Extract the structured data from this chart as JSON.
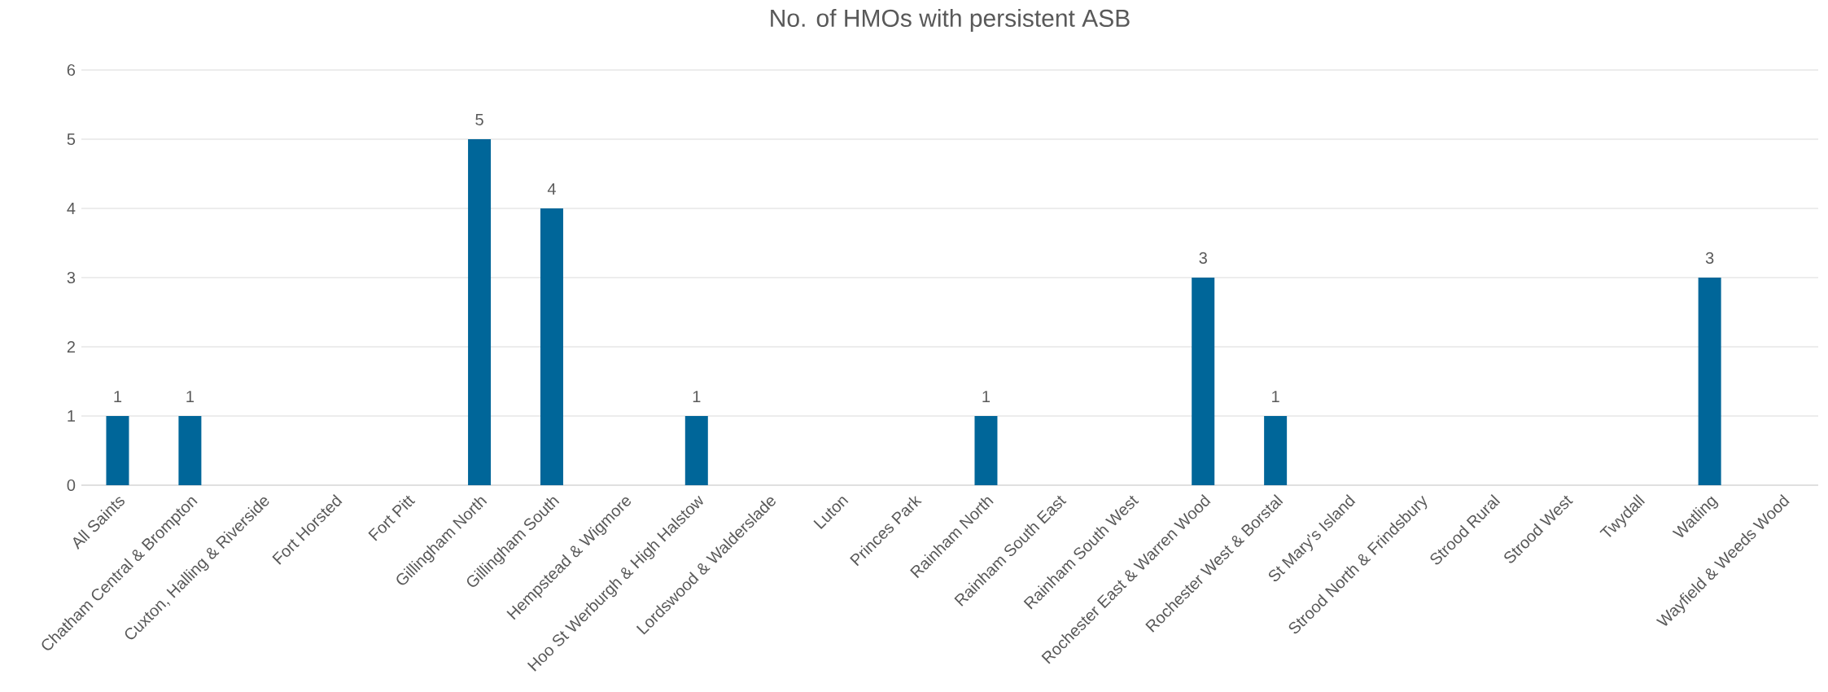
{
  "chart_data": {
    "type": "bar",
    "title": "No. of HMOs with persistent ASB",
    "categories": [
      "All Saints",
      "Chatham Central & Brompton",
      "Cuxton, Halling & Riverside",
      "Fort Horsted",
      "Fort Pitt",
      "Gillingham North",
      "Gillingham South",
      "Hempstead & Wigmore",
      "Hoo St Werburgh & High Halstow",
      "Lordswood & Walderslade",
      "Luton",
      "Princes Park",
      "Rainham North",
      "Rainham South East",
      "Rainham South West",
      "Rochester East & Warren Wood",
      "Rochester West & Borstal",
      "St Mary's Island",
      "Strood North & Frindsbury",
      "Strood Rural",
      "Strood West",
      "Twydall",
      "Watling",
      "Wayfield & Weeds Wood"
    ],
    "values": [
      1,
      1,
      null,
      null,
      null,
      5,
      4,
      null,
      1,
      null,
      null,
      null,
      1,
      null,
      null,
      3,
      1,
      null,
      null,
      null,
      null,
      null,
      3,
      null
    ],
    "color": "#006699",
    "ylim": [
      0,
      6
    ],
    "yticks": [
      0,
      1,
      2,
      3,
      4,
      5,
      6
    ],
    "grid": "y",
    "data_labels": true
  }
}
